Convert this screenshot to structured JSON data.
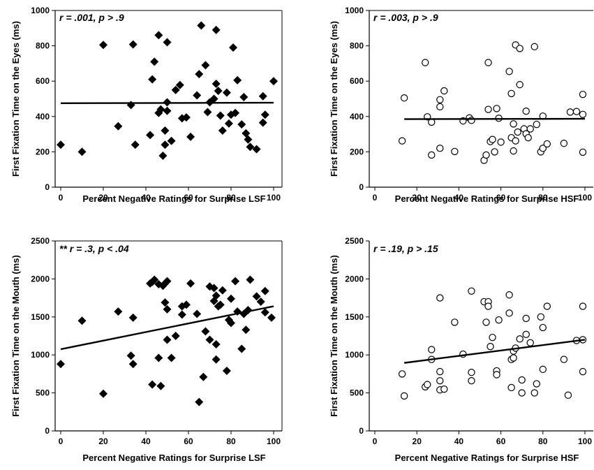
{
  "chart_data": [
    {
      "type": "scatter",
      "annotation": "r = .001, p > .9",
      "xlabel": "Percent Negative Ratings for Surprise LSF",
      "ylabel": "First Fixation Time on the Eyes (ms)",
      "xlim": [
        0,
        100
      ],
      "ylim": [
        0,
        1000
      ],
      "xticks": [
        0,
        20,
        40,
        60,
        80,
        100
      ],
      "yticks": [
        0,
        200,
        400,
        600,
        800,
        1000
      ],
      "marker": "filled-diamond",
      "series": [
        {
          "points": [
            [
              0,
              240
            ],
            [
              10,
              200
            ],
            [
              20,
              805
            ],
            [
              27,
              345
            ],
            [
              33,
              465
            ],
            [
              34,
              808
            ],
            [
              35,
              240
            ],
            [
              42,
              295
            ],
            [
              43,
              610
            ],
            [
              44,
              710
            ],
            [
              46,
              420
            ],
            [
              46,
              860
            ],
            [
              47,
              440
            ],
            [
              48,
              178
            ],
            [
              49,
              240
            ],
            [
              49,
              320
            ],
            [
              50,
              432
            ],
            [
              50,
              480
            ],
            [
              50,
              820
            ],
            [
              52,
              262
            ],
            [
              54,
              550
            ],
            [
              56,
              578
            ],
            [
              57,
              390
            ],
            [
              59,
              395
            ],
            [
              61,
              285
            ],
            [
              64,
              520
            ],
            [
              65,
              640
            ],
            [
              66,
              915
            ],
            [
              68,
              690
            ],
            [
              69,
              425
            ],
            [
              70,
              480
            ],
            [
              72,
              500
            ],
            [
              73,
              890
            ],
            [
              73,
              585
            ],
            [
              74,
              545
            ],
            [
              75,
              405
            ],
            [
              76,
              320
            ],
            [
              78,
              535
            ],
            [
              79,
              360
            ],
            [
              80,
              410
            ],
            [
              81,
              790
            ],
            [
              82,
              420
            ],
            [
              83,
              605
            ],
            [
              85,
              355
            ],
            [
              86,
              510
            ],
            [
              87,
              305
            ],
            [
              88,
              270
            ],
            [
              89,
              228
            ],
            [
              92,
              215
            ],
            [
              95,
              365
            ],
            [
              95,
              515
            ],
            [
              96,
              410
            ],
            [
              100,
              600
            ]
          ]
        }
      ],
      "trendline": {
        "x": [
          0,
          100
        ],
        "y": [
          475,
          478
        ]
      }
    },
    {
      "type": "scatter",
      "annotation": "r = .003, p > .9",
      "xlabel": "Percent Negative Ratings for Surprise HSF",
      "ylabel": "First Fixation Time on the Eyes (ms)",
      "xlim": [
        0,
        100
      ],
      "ylim": [
        0,
        1000
      ],
      "xticks": [
        0,
        20,
        40,
        60,
        80,
        100
      ],
      "yticks": [
        0,
        200,
        400,
        600,
        800,
        1000
      ],
      "marker": "open-circle",
      "series": [
        {
          "points": [
            [
              13,
              262
            ],
            [
              14,
              505
            ],
            [
              24,
              705
            ],
            [
              25,
              398
            ],
            [
              27,
              368
            ],
            [
              27,
              182
            ],
            [
              31,
              220
            ],
            [
              31,
              455
            ],
            [
              31,
              495
            ],
            [
              33,
              545
            ],
            [
              38,
              202
            ],
            [
              42,
              375
            ],
            [
              45,
              392
            ],
            [
              46,
              378
            ],
            [
              52,
              152
            ],
            [
              53,
              182
            ],
            [
              54,
              705
            ],
            [
              54,
              440
            ],
            [
              55,
              258
            ],
            [
              56,
              270
            ],
            [
              57,
              200
            ],
            [
              58,
              445
            ],
            [
              59,
              390
            ],
            [
              60,
              255
            ],
            [
              64,
              655
            ],
            [
              65,
              530
            ],
            [
              65,
              280
            ],
            [
              66,
              358
            ],
            [
              66,
              205
            ],
            [
              67,
              805
            ],
            [
              67,
              262
            ],
            [
              68,
              312
            ],
            [
              69,
              785
            ],
            [
              69,
              580
            ],
            [
              71,
              330
            ],
            [
              72,
              430
            ],
            [
              72,
              302
            ],
            [
              73,
              280
            ],
            [
              74,
              330
            ],
            [
              76,
              795
            ],
            [
              77,
              355
            ],
            [
              79,
              200
            ],
            [
              80,
              220
            ],
            [
              80,
              402
            ],
            [
              82,
              245
            ],
            [
              90,
              248
            ],
            [
              93,
              425
            ],
            [
              96,
              428
            ],
            [
              99,
              525
            ],
            [
              99,
              412
            ],
            [
              99,
              198
            ]
          ]
        }
      ],
      "trendline": {
        "x": [
          14,
          100
        ],
        "y": [
          385,
          387
        ]
      }
    },
    {
      "type": "scatter",
      "annotation": "** r = .3, p < .04",
      "xlabel": "Percent Negative Ratings for Surprise LSF",
      "ylabel": "First Fixation Time on the Mouth (ms)",
      "xlim": [
        0,
        100
      ],
      "ylim": [
        0,
        2500
      ],
      "xticks": [
        0,
        20,
        40,
        60,
        80,
        100
      ],
      "yticks": [
        0,
        500,
        1000,
        1500,
        2000,
        2500
      ],
      "marker": "filled-diamond",
      "series": [
        {
          "points": [
            [
              0,
              880
            ],
            [
              10,
              1450
            ],
            [
              20,
              490
            ],
            [
              27,
              1570
            ],
            [
              33,
              990
            ],
            [
              34,
              880
            ],
            [
              34,
              1490
            ],
            [
              42,
              1940
            ],
            [
              43,
              610
            ],
            [
              43,
              1960
            ],
            [
              44,
              1990
            ],
            [
              46,
              960
            ],
            [
              46,
              1930
            ],
            [
              47,
              590
            ],
            [
              48,
              1910
            ],
            [
              49,
              1690
            ],
            [
              49,
              1940
            ],
            [
              50,
              1200
            ],
            [
              50,
              1600
            ],
            [
              50,
              1970
            ],
            [
              52,
              960
            ],
            [
              54,
              1250
            ],
            [
              57,
              1530
            ],
            [
              57,
              1640
            ],
            [
              59,
              1660
            ],
            [
              61,
              1940
            ],
            [
              64,
              1540
            ],
            [
              65,
              380
            ],
            [
              67,
              710
            ],
            [
              68,
              1310
            ],
            [
              70,
              1200
            ],
            [
              70,
              1900
            ],
            [
              72,
              1710
            ],
            [
              72,
              1880
            ],
            [
              73,
              1780
            ],
            [
              73,
              940
            ],
            [
              73,
              1140
            ],
            [
              74,
              1640
            ],
            [
              75,
              1660
            ],
            [
              76,
              1850
            ],
            [
              78,
              790
            ],
            [
              79,
              1460
            ],
            [
              80,
              1420
            ],
            [
              80,
              1740
            ],
            [
              82,
              1970
            ],
            [
              83,
              1570
            ],
            [
              85,
              1080
            ],
            [
              86,
              1540
            ],
            [
              87,
              1330
            ],
            [
              88,
              1590
            ],
            [
              89,
              1990
            ],
            [
              92,
              1770
            ],
            [
              94,
              1700
            ],
            [
              96,
              1560
            ],
            [
              96,
              1840
            ],
            [
              99,
              1490
            ]
          ]
        }
      ],
      "trendline": {
        "x": [
          0,
          100
        ],
        "y": [
          1075,
          1640
        ]
      }
    },
    {
      "type": "scatter",
      "annotation": "r = .19, p > .15",
      "xlabel": "Percent Negative Ratings for Surprise HSF",
      "ylabel": "First Fixation Time on the Mouth (ms)",
      "xlim": [
        0,
        100
      ],
      "ylim": [
        0,
        2500
      ],
      "xticks": [
        0,
        20,
        40,
        60,
        80,
        100
      ],
      "yticks": [
        0,
        500,
        1000,
        1500,
        2000,
        2500
      ],
      "marker": "open-circle",
      "series": [
        {
          "points": [
            [
              13,
              750
            ],
            [
              14,
              460
            ],
            [
              24,
              580
            ],
            [
              25,
              610
            ],
            [
              27,
              940
            ],
            [
              27,
              1070
            ],
            [
              31,
              540
            ],
            [
              31,
              660
            ],
            [
              31,
              780
            ],
            [
              31,
              1750
            ],
            [
              33,
              550
            ],
            [
              38,
              1430
            ],
            [
              42,
              1010
            ],
            [
              46,
              1840
            ],
            [
              46,
              660
            ],
            [
              46,
              770
            ],
            [
              52,
              1700
            ],
            [
              53,
              1430
            ],
            [
              54,
              1700
            ],
            [
              54,
              1640
            ],
            [
              55,
              1110
            ],
            [
              56,
              1230
            ],
            [
              58,
              790
            ],
            [
              58,
              740
            ],
            [
              59,
              1460
            ],
            [
              64,
              1550
            ],
            [
              64,
              1790
            ],
            [
              65,
              570
            ],
            [
              65,
              940
            ],
            [
              66,
              960
            ],
            [
              66,
              1050
            ],
            [
              67,
              1090
            ],
            [
              69,
              1210
            ],
            [
              70,
              500
            ],
            [
              70,
              670
            ],
            [
              72,
              1480
            ],
            [
              72,
              1270
            ],
            [
              74,
              1160
            ],
            [
              76,
              500
            ],
            [
              77,
              620
            ],
            [
              79,
              1500
            ],
            [
              80,
              1360
            ],
            [
              80,
              810
            ],
            [
              82,
              1640
            ],
            [
              90,
              940
            ],
            [
              92,
              470
            ],
            [
              96,
              1190
            ],
            [
              99,
              1200
            ],
            [
              99,
              1640
            ],
            [
              99,
              780
            ]
          ]
        }
      ],
      "trendline": {
        "x": [
          14,
          100
        ],
        "y": [
          895,
          1200
        ]
      }
    }
  ]
}
